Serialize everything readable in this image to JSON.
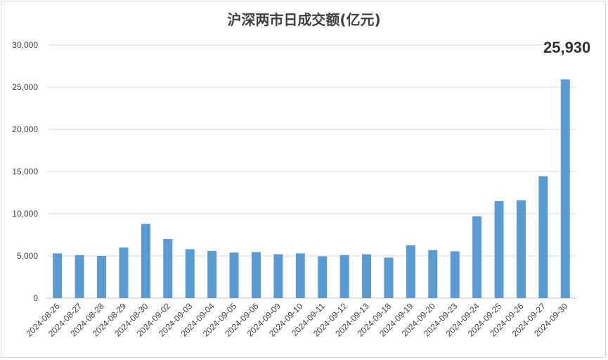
{
  "chart_data": {
    "type": "bar",
    "title": "沪深两市日成交额(亿元)",
    "categories": [
      "2024-08-26",
      "2024-08-27",
      "2024-08-28",
      "2024-08-29",
      "2024-08-30",
      "2024-09-02",
      "2024-09-03",
      "2024-09-04",
      "2024-09-05",
      "2024-09-06",
      "2024-09-09",
      "2024-09-10",
      "2024-09-11",
      "2024-09-12",
      "2024-09-13",
      "2024-09-18",
      "2024-09-19",
      "2024-09-20",
      "2024-09-23",
      "2024-09-24",
      "2024-09-25",
      "2024-09-26",
      "2024-09-27",
      "2024-09-30"
    ],
    "values": [
      5300,
      5100,
      5000,
      6000,
      8800,
      7000,
      5800,
      5600,
      5400,
      5450,
      5200,
      5300,
      4950,
      5100,
      5200,
      4800,
      6250,
      5700,
      5550,
      9700,
      11500,
      11600,
      14450,
      25930
    ],
    "ylim": [
      0,
      30000
    ],
    "yticks": [
      "0",
      "5,000",
      "10,000",
      "15,000",
      "20,000",
      "25,000",
      "30,000"
    ],
    "ytick_values": [
      0,
      5000,
      10000,
      15000,
      20000,
      25000,
      30000
    ],
    "grid": true,
    "bar_color": "#5b9bd5",
    "annotation": "25,930",
    "xlabel": "",
    "ylabel": ""
  }
}
